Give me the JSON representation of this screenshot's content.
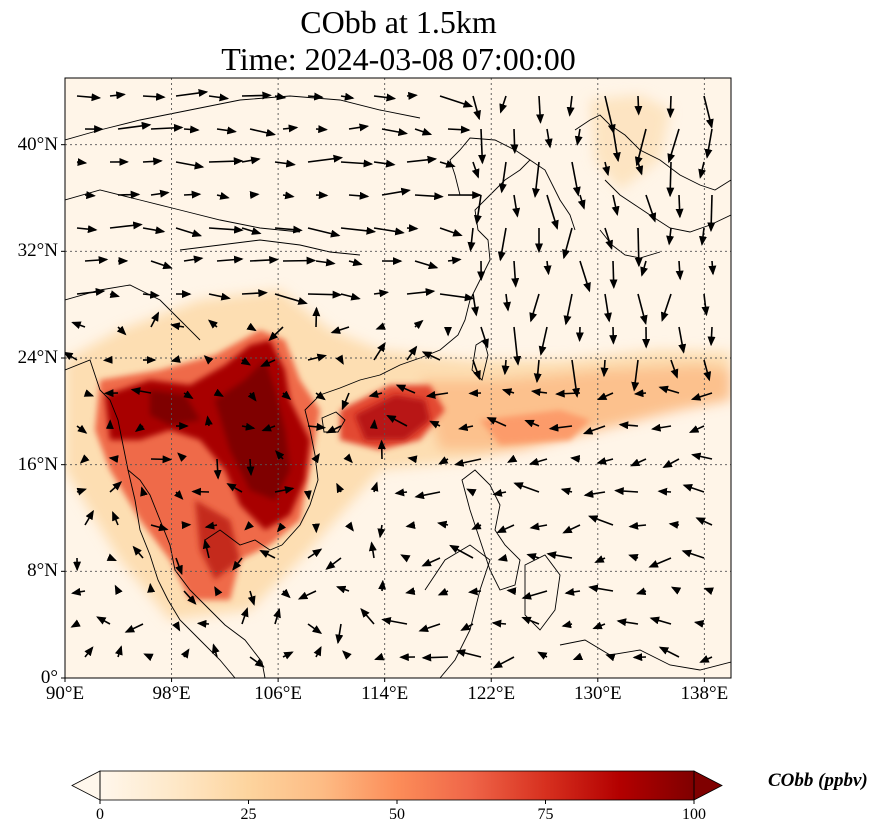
{
  "title": {
    "line1": "CObb at 1.5km",
    "line2": "Time: 2024-03-08 07:00:00"
  },
  "map": {
    "extent": {
      "lon": [
        90,
        140
      ],
      "lat": [
        0,
        45
      ]
    },
    "lat_ticks": [
      {
        "value": 0,
        "label": "0°"
      },
      {
        "value": 8,
        "label": "8°N"
      },
      {
        "value": 16,
        "label": "16°N"
      },
      {
        "value": 24,
        "label": "24°N"
      },
      {
        "value": 32,
        "label": "32°N"
      },
      {
        "value": 40,
        "label": "40°N"
      }
    ],
    "lon_ticks": [
      {
        "value": 90,
        "label": "90°E"
      },
      {
        "value": 98,
        "label": "98°E"
      },
      {
        "value": 106,
        "label": "106°E"
      },
      {
        "value": 114,
        "label": "114°E"
      },
      {
        "value": 122,
        "label": "122°E"
      },
      {
        "value": 130,
        "label": "130°E"
      },
      {
        "value": 138,
        "label": "138°E"
      }
    ],
    "gridlines": true,
    "field_variable": "CObb",
    "colormap": "OrRd",
    "vector_field": "wind"
  },
  "colorbar": {
    "label": "CObb (ppbv)",
    "min": 0,
    "max": 100,
    "ticks": [
      {
        "value": 0,
        "label": "0"
      },
      {
        "value": 25,
        "label": "25"
      },
      {
        "value": 50,
        "label": "50"
      },
      {
        "value": 75,
        "label": "75"
      },
      {
        "value": 100,
        "label": "100"
      }
    ],
    "extend": "both",
    "colors": [
      "#fff7ec",
      "#fee8c8",
      "#fdd49e",
      "#fdbb84",
      "#fc8d59",
      "#ef6548",
      "#d7301f",
      "#b30000",
      "#7f0000"
    ]
  }
}
